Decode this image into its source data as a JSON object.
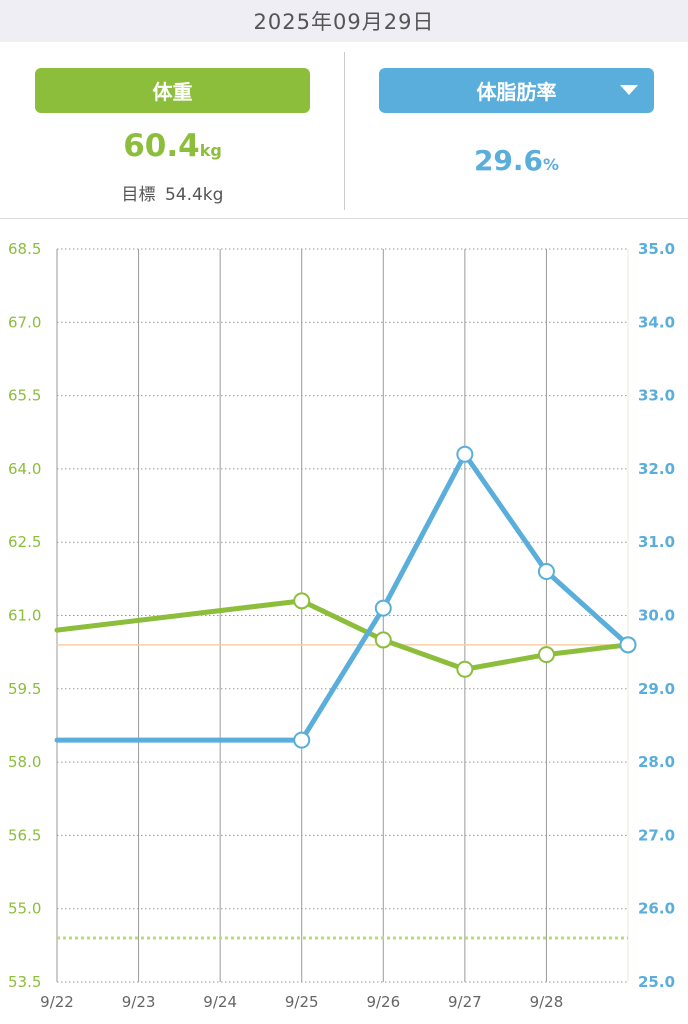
{
  "header": {
    "date": "2025年09月29日"
  },
  "summary": {
    "weight": {
      "label": "体重",
      "value": "60.4",
      "unit": "kg",
      "goal_label": "目標",
      "goal_value": "54.4kg"
    },
    "body_fat": {
      "label": "体脂肪率",
      "value": "29.6",
      "unit": "%"
    }
  },
  "colors": {
    "weight": "#8cbe3c",
    "body_fat": "#5aaedb",
    "current_line": "#f6cfa6",
    "background_header": "#eeeef4"
  },
  "chart_data": {
    "type": "line",
    "categories": [
      "9/22",
      "9/23",
      "9/24",
      "9/25",
      "9/26",
      "9/27",
      "9/28"
    ],
    "x_domain": [
      0,
      7
    ],
    "grid": true,
    "y_left": {
      "ticks": [
        "68.5",
        "67.0",
        "65.5",
        "64.0",
        "62.5",
        "61.0",
        "59.5",
        "58.0",
        "56.5",
        "55.0",
        "53.5"
      ],
      "lim": [
        53.5,
        68.5
      ]
    },
    "y_right": {
      "ticks": [
        "35.0",
        "34.0",
        "33.0",
        "32.0",
        "31.0",
        "30.0",
        "29.0",
        "28.0",
        "27.0",
        "26.0",
        "25.0"
      ],
      "lim": [
        25.0,
        35.0
      ]
    },
    "series": [
      {
        "axis": "left",
        "color": "#8cbe3c",
        "points": [
          {
            "x": 0,
            "y": 60.7,
            "marker": false
          },
          {
            "x": 3,
            "y": 61.3,
            "marker": true
          },
          {
            "x": 4,
            "y": 60.5,
            "marker": true
          },
          {
            "x": 5,
            "y": 59.9,
            "marker": true
          },
          {
            "x": 6,
            "y": 60.2,
            "marker": true
          },
          {
            "x": 7,
            "y": 60.4,
            "marker": true
          }
        ]
      },
      {
        "axis": "right",
        "color": "#5aaedb",
        "points": [
          {
            "x": 0,
            "y": 28.3,
            "marker": false
          },
          {
            "x": 3,
            "y": 28.3,
            "marker": true
          },
          {
            "x": 4,
            "y": 30.1,
            "marker": true
          },
          {
            "x": 5,
            "y": 32.2,
            "marker": true
          },
          {
            "x": 6,
            "y": 30.6,
            "marker": true
          },
          {
            "x": 7,
            "y": 29.6,
            "marker": true
          }
        ]
      }
    ],
    "reference_lines": [
      {
        "axis": "left",
        "y": 60.4,
        "color": "#f6cfa6",
        "style": "solid"
      },
      {
        "axis": "left",
        "y": 54.4,
        "color": "#b8dc76",
        "style": "dotted"
      }
    ]
  }
}
